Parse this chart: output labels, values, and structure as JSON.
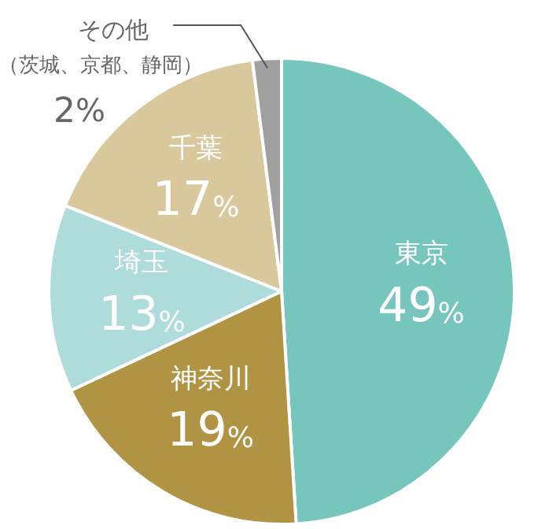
{
  "chart_data": {
    "type": "pie",
    "categories": [
      "東京",
      "神奈川",
      "埼玉",
      "千葉",
      "その他（茨城、京都、静岡）"
    ],
    "values": [
      49,
      19,
      13,
      17,
      2
    ],
    "colors": [
      "#76c6bd",
      "#b09444",
      "#aedcdb",
      "#d8c89c",
      "#a0a0a0"
    ],
    "value_labels": [
      "49%",
      "19%",
      "13%",
      "17%",
      "2%"
    ],
    "legend": false
  }
}
